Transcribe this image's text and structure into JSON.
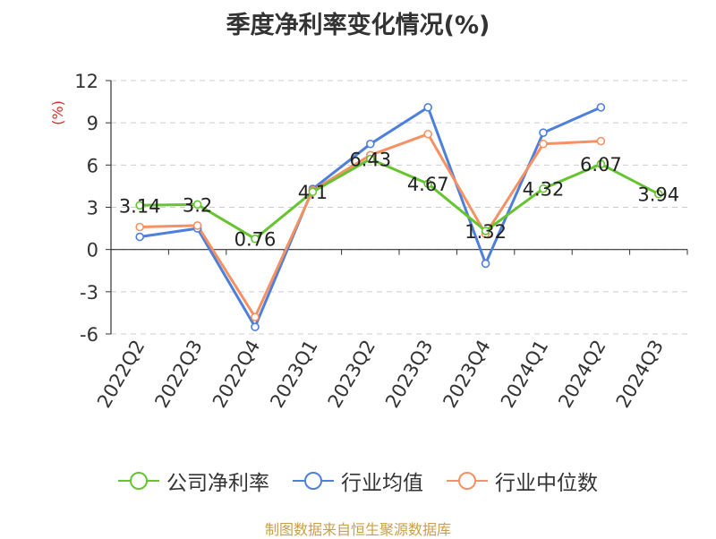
{
  "title": "季度净利率变化情况(%)",
  "source": "制图数据来自恒生聚源数据库",
  "chart_data": {
    "type": "line",
    "categories": [
      "2022Q2",
      "2022Q3",
      "2022Q4",
      "2023Q1",
      "2023Q2",
      "2023Q3",
      "2023Q4",
      "2024Q1",
      "2024Q2",
      "2024Q3"
    ],
    "ylabel": "(%)",
    "ylim": [
      -6,
      12
    ],
    "yticks": [
      12,
      9,
      6,
      3,
      0,
      -3,
      -6
    ],
    "ytick_labels": [
      "12",
      "9",
      "6",
      "3",
      "0",
      "-3",
      "-6"
    ],
    "grid": true,
    "legend_position": "bottom",
    "series": [
      {
        "name": "公司净利率",
        "color": "#66c431",
        "values": [
          3.14,
          3.2,
          0.76,
          4.1,
          6.43,
          4.67,
          1.32,
          4.32,
          6.07,
          3.94
        ],
        "labels": [
          "3.14",
          "3.2",
          "0.76",
          "4.1",
          "6.43",
          "4.67",
          "1.32",
          "4.32",
          "6.07",
          "3.94"
        ]
      },
      {
        "name": "行业均值",
        "color": "#4e7fdb",
        "values": [
          0.9,
          1.5,
          -5.5,
          4.3,
          7.5,
          10.1,
          -1.0,
          8.3,
          10.1,
          null
        ]
      },
      {
        "name": "行业中位数",
        "color": "#f59162",
        "values": [
          1.6,
          1.7,
          -4.8,
          4.2,
          6.7,
          8.2,
          1.1,
          7.5,
          7.7,
          null
        ]
      }
    ]
  }
}
